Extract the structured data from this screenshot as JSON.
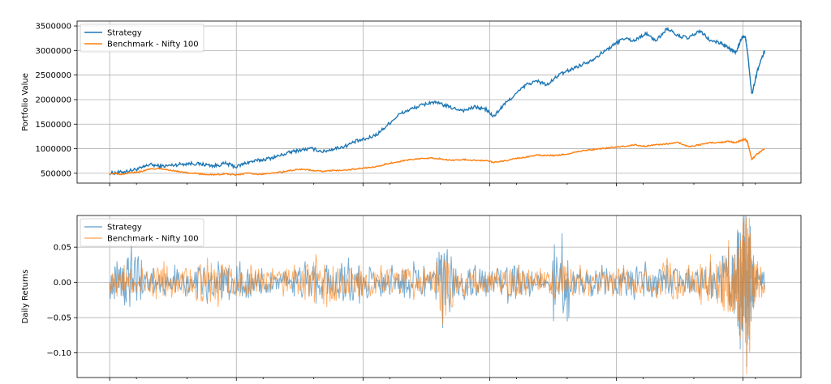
{
  "chart_data": [
    {
      "type": "line",
      "ylabel": "Portfolio Value",
      "ylim": [
        300000,
        3600000
      ],
      "yticks": [
        500000,
        1000000,
        1500000,
        2000000,
        2500000,
        3000000,
        3500000
      ],
      "ytick_labels": [
        "500000",
        "1000000",
        "1500000",
        "2000000",
        "2500000",
        "3000000",
        "3500000"
      ],
      "xlim": [
        0,
        100
      ],
      "xgrid": [
        4.5,
        22,
        39.5,
        57,
        74.5,
        92
      ],
      "xminor": [
        8.2,
        15.2,
        25.7,
        32.7,
        43.2,
        50.2,
        60.7,
        67.7,
        78.2,
        85.2,
        93.7
      ],
      "grid": true,
      "legend": "top-left",
      "series": [
        {
          "name": "Strategy",
          "color": "#1f77b4",
          "x": [
            4.5,
            6,
            7.5,
            9,
            10,
            11.5,
            13,
            14.5,
            16,
            17.5,
            19,
            20.5,
            22,
            23.5,
            25,
            26.5,
            28,
            29.5,
            31,
            32.5,
            34,
            35.5,
            37,
            38.5,
            40,
            41.5,
            43,
            44.5,
            46,
            47.5,
            49,
            50.5,
            52,
            53.5,
            55,
            56.5,
            57.5,
            59,
            60.5,
            62,
            63.5,
            65,
            66.5,
            68,
            69.5,
            71,
            72.5,
            74,
            75.5,
            77,
            78.5,
            80,
            81.5,
            83,
            84.5,
            86,
            87.5,
            89,
            90,
            91,
            91.8,
            92.3,
            92.6,
            93.2,
            94,
            95
          ],
          "y": [
            500000,
            520000,
            560000,
            610000,
            680000,
            640000,
            660000,
            690000,
            700000,
            680000,
            650000,
            700000,
            630000,
            720000,
            760000,
            800000,
            860000,
            930000,
            980000,
            1000000,
            940000,
            1000000,
            1050000,
            1150000,
            1200000,
            1300000,
            1500000,
            1700000,
            1800000,
            1880000,
            1950000,
            1900000,
            1820000,
            1780000,
            1850000,
            1800000,
            1650000,
            1900000,
            2100000,
            2300000,
            2380000,
            2300000,
            2500000,
            2600000,
            2700000,
            2800000,
            2950000,
            3100000,
            3250000,
            3200000,
            3350000,
            3200000,
            3450000,
            3300000,
            3250000,
            3400000,
            3200000,
            3150000,
            3050000,
            2950000,
            3250000,
            3300000,
            3000000,
            2100000,
            2600000,
            3000000
          ]
        },
        {
          "name": "Benchmark - Nifty 100",
          "color": "#ff7f0e",
          "x": [
            4.5,
            6,
            7.5,
            9,
            10,
            11.5,
            13,
            14.5,
            16,
            17.5,
            19,
            20.5,
            22,
            23.5,
            25,
            26.5,
            28,
            29.5,
            31,
            32.5,
            34,
            35.5,
            37,
            38.5,
            40,
            41.5,
            43,
            44.5,
            46,
            47.5,
            49,
            50.5,
            52,
            53.5,
            55,
            56.5,
            57.5,
            59,
            60.5,
            62,
            63.5,
            65,
            66.5,
            68,
            69.5,
            71,
            72.5,
            74,
            75.5,
            77,
            78.5,
            80,
            81.5,
            83,
            84.5,
            86,
            87.5,
            89,
            90,
            91,
            91.8,
            92.3,
            92.6,
            93.2,
            94,
            95
          ],
          "y": [
            500000,
            480000,
            510000,
            540000,
            580000,
            600000,
            560000,
            520000,
            500000,
            480000,
            470000,
            490000,
            460000,
            500000,
            480000,
            490000,
            520000,
            560000,
            580000,
            560000,
            540000,
            560000,
            560000,
            590000,
            610000,
            640000,
            700000,
            740000,
            780000,
            800000,
            810000,
            790000,
            760000,
            780000,
            760000,
            760000,
            720000,
            750000,
            800000,
            830000,
            870000,
            860000,
            870000,
            900000,
            950000,
            980000,
            1000000,
            1030000,
            1050000,
            1080000,
            1050000,
            1080000,
            1100000,
            1130000,
            1040000,
            1080000,
            1120000,
            1130000,
            1150000,
            1120000,
            1180000,
            1190000,
            1150000,
            780000,
            900000,
            1000000
          ]
        }
      ]
    },
    {
      "type": "line",
      "ylabel": "Daily Returns",
      "ylim": [
        -0.135,
        0.095
      ],
      "yticks": [
        -0.1,
        -0.05,
        0.0,
        0.05
      ],
      "ytick_labels": [
        "−0.10",
        "−0.05",
        "0.00",
        "0.05"
      ],
      "xlim": [
        0,
        100
      ],
      "xgrid": [
        4.5,
        22,
        39.5,
        57,
        74.5,
        92
      ],
      "xminor": [
        8.2,
        15.2,
        25.7,
        32.7,
        43.2,
        50.2,
        60.7,
        67.7,
        78.2,
        85.2,
        93.7
      ],
      "grid": true,
      "legend": "top-left",
      "series": [
        {
          "name": "Strategy",
          "color": "#1f77b4",
          "x": [
            4.5,
            5.5,
            6.5,
            7.5,
            9,
            10.5,
            12,
            13.5,
            15,
            16.5,
            18,
            19.5,
            21,
            22.5,
            24,
            25.5,
            27,
            28.5,
            30,
            31.5,
            33,
            34.5,
            36,
            37.5,
            39,
            40.5,
            42,
            43.5,
            45,
            46.5,
            48,
            49.5,
            50.5,
            52,
            53.5,
            55,
            56.5,
            58,
            59.5,
            61,
            62.5,
            64,
            65.5,
            67,
            68,
            69.5,
            71,
            72.5,
            74,
            75.5,
            77,
            78.5,
            80,
            81.5,
            83,
            84.5,
            86,
            87.5,
            89,
            90,
            90.7,
            91.2,
            91.6,
            92,
            92.5,
            93,
            93.5,
            94,
            95
          ],
          "y": [
            0.0,
            0.03,
            -0.02,
            0.055,
            -0.015,
            0.02,
            -0.01,
            0.025,
            -0.02,
            0.015,
            -0.03,
            0.03,
            -0.025,
            0.03,
            -0.02,
            0.02,
            -0.01,
            0.015,
            -0.02,
            0.03,
            -0.03,
            0.025,
            -0.015,
            0.035,
            -0.03,
            0.02,
            -0.02,
            0.025,
            -0.015,
            0.03,
            -0.02,
            0.01,
            -0.065,
            0.02,
            -0.025,
            0.025,
            -0.02,
            0.015,
            -0.03,
            0.025,
            -0.02,
            0.015,
            -0.01,
            0.07,
            -0.015,
            0.02,
            -0.02,
            0.025,
            -0.015,
            0.02,
            -0.025,
            0.03,
            -0.02,
            0.025,
            -0.015,
            0.02,
            -0.02,
            0.03,
            -0.02,
            0.05,
            -0.03,
            0.06,
            -0.095,
            0.06,
            -0.12,
            0.08,
            -0.03,
            0.02,
            -0.01
          ]
        },
        {
          "name": "Benchmark - Nifty 100",
          "color": "#ff7f0e",
          "x": [
            4.5,
            5.5,
            6.5,
            7.5,
            9,
            10.5,
            12,
            13.5,
            15,
            16.5,
            18,
            19.5,
            21,
            22.5,
            24,
            25.5,
            27,
            28.5,
            30,
            31.5,
            33,
            34.5,
            36,
            37.5,
            39,
            40.5,
            42,
            43.5,
            45,
            46.5,
            48,
            49.5,
            50.5,
            52,
            53.5,
            55,
            56.5,
            58,
            59.5,
            61,
            62.5,
            64,
            65.5,
            67,
            68,
            69.5,
            71,
            72.5,
            74,
            75.5,
            77,
            78.5,
            80,
            81.5,
            83,
            84.5,
            86,
            87.5,
            89,
            90,
            90.7,
            91.2,
            91.6,
            92,
            92.5,
            93,
            93.5,
            94,
            95
          ],
          "y": [
            0.0,
            -0.02,
            0.025,
            -0.015,
            0.02,
            -0.02,
            0.03,
            -0.015,
            0.02,
            -0.025,
            0.035,
            -0.035,
            0.025,
            -0.02,
            0.025,
            -0.015,
            0.02,
            -0.02,
            0.025,
            -0.025,
            0.04,
            -0.035,
            0.02,
            -0.015,
            0.025,
            -0.02,
            0.025,
            -0.015,
            0.02,
            -0.025,
            0.02,
            -0.015,
            -0.06,
            0.02,
            -0.02,
            0.02,
            -0.015,
            0.02,
            -0.02,
            0.025,
            -0.015,
            0.02,
            -0.015,
            0.03,
            -0.01,
            0.025,
            -0.015,
            0.02,
            -0.02,
            0.025,
            -0.015,
            0.02,
            -0.02,
            0.035,
            -0.02,
            0.025,
            -0.025,
            0.04,
            -0.03,
            0.06,
            -0.04,
            0.05,
            -0.08,
            0.085,
            -0.13,
            0.07,
            -0.035,
            0.03,
            -0.015
          ]
        }
      ]
    }
  ]
}
